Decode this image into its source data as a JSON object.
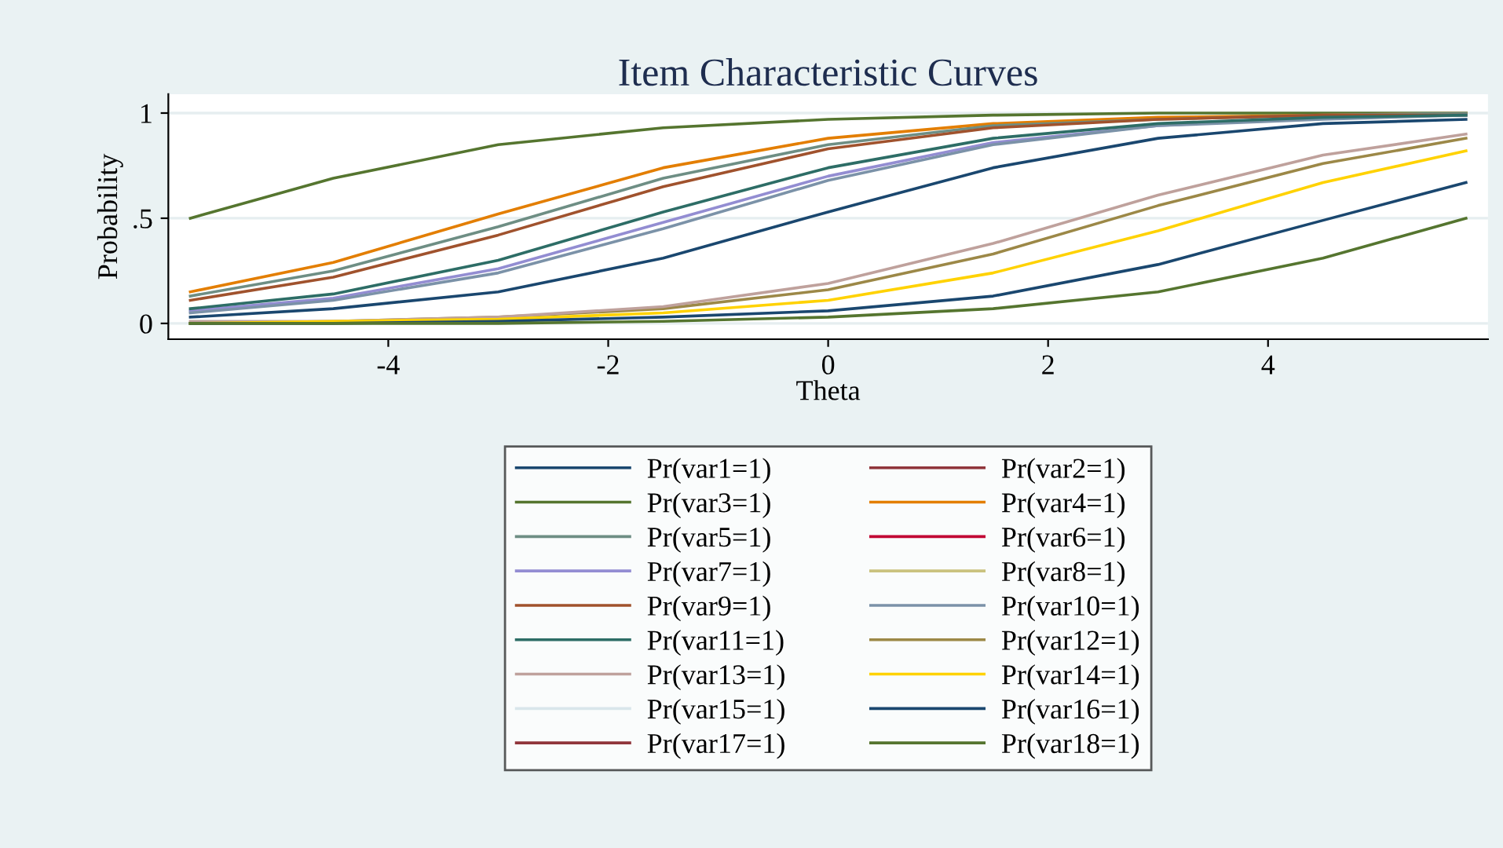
{
  "chart_data": {
    "type": "line",
    "title": "Item Characteristic Curves",
    "xlabel": "Theta",
    "ylabel": "Probability",
    "x": [
      -5.8,
      -4.5,
      -3,
      -1.5,
      0,
      1.5,
      3,
      4.5,
      5.8
    ],
    "xlim": [
      -6,
      6
    ],
    "xticks": [
      {
        "value": -4,
        "label": "-4"
      },
      {
        "value": -2,
        "label": "-2"
      },
      0,
      2,
      4
    ],
    "ylim": [
      -0.075,
      1.09
    ],
    "yticks": [
      0,
      {
        "value": 0.5,
        "label": ".5"
      },
      1
    ],
    "grid": "y",
    "legend": "bottom",
    "marker": "none",
    "line_style": "solid",
    "series": [
      {
        "name": "Pr(var1=1)",
        "color": "#1a476f",
        "values": [
          0.03,
          0.07,
          0.15,
          0.31,
          0.53,
          0.74,
          0.88,
          0.95,
          0.97
        ]
      },
      {
        "name": "Pr(var2=1)",
        "color": "#90353b",
        "values": [
          null,
          null,
          null,
          null,
          null,
          null,
          null,
          null,
          null
        ]
      },
      {
        "name": "Pr(var3=1)",
        "color": "#55752f",
        "values": [
          0.5,
          0.69,
          0.85,
          0.93,
          0.97,
          0.99,
          1,
          1,
          1
        ]
      },
      {
        "name": "Pr(var4=1)",
        "color": "#e37e00",
        "values": [
          0.15,
          0.29,
          0.52,
          0.74,
          0.88,
          0.95,
          0.98,
          0.99,
          1
        ]
      },
      {
        "name": "Pr(var5=1)",
        "color": "#6e8e84",
        "values": [
          0.13,
          0.25,
          0.46,
          0.69,
          0.85,
          0.94,
          0.97,
          0.99,
          1
        ]
      },
      {
        "name": "Pr(var6=1)",
        "color": "#c10534",
        "values": [
          null,
          null,
          null,
          null,
          null,
          null,
          null,
          null,
          null
        ]
      },
      {
        "name": "Pr(var7=1)",
        "color": "#938dd2",
        "values": [
          0.06,
          0.12,
          0.26,
          0.48,
          0.7,
          0.86,
          0.94,
          0.98,
          0.99
        ]
      },
      {
        "name": "Pr(var8=1)",
        "color": "#cac27e",
        "values": [
          null,
          null,
          null,
          null,
          null,
          null,
          null,
          null,
          null
        ]
      },
      {
        "name": "Pr(var9=1)",
        "color": "#a0522d",
        "values": [
          0.11,
          0.22,
          0.42,
          0.65,
          0.83,
          0.93,
          0.97,
          0.99,
          0.99
        ]
      },
      {
        "name": "Pr(var10=1)",
        "color": "#7b92a8",
        "values": [
          0.05,
          0.11,
          0.24,
          0.45,
          0.68,
          0.85,
          0.94,
          0.97,
          0.99
        ]
      },
      {
        "name": "Pr(var11=1)",
        "color": "#2d6d66",
        "values": [
          0.07,
          0.14,
          0.3,
          0.53,
          0.74,
          0.88,
          0.95,
          0.98,
          0.99
        ]
      },
      {
        "name": "Pr(var12=1)",
        "color": "#9c8847",
        "values": [
          0,
          0.01,
          0.03,
          0.07,
          0.16,
          0.33,
          0.56,
          0.76,
          0.88
        ]
      },
      {
        "name": "Pr(var13=1)",
        "color": "#bfa19c",
        "values": [
          0.01,
          0.01,
          0.03,
          0.08,
          0.19,
          0.38,
          0.61,
          0.8,
          0.9
        ]
      },
      {
        "name": "Pr(var14=1)",
        "color": "#ffd200",
        "values": [
          0,
          0.01,
          0.02,
          0.05,
          0.11,
          0.24,
          0.44,
          0.67,
          0.82
        ]
      },
      {
        "name": "Pr(var15=1)",
        "color": "#d9e6eb",
        "values": [
          null,
          null,
          null,
          null,
          null,
          null,
          null,
          null,
          null
        ]
      },
      {
        "name": "Pr(var16=1)",
        "color": "#1a476f",
        "values": [
          0,
          0,
          0.01,
          0.03,
          0.06,
          0.13,
          0.28,
          0.49,
          0.67
        ]
      },
      {
        "name": "Pr(var17=1)",
        "color": "#90353b",
        "values": [
          null,
          null,
          null,
          null,
          null,
          null,
          null,
          null,
          null
        ]
      },
      {
        "name": "Pr(var18=1)",
        "color": "#55752f",
        "values": [
          0,
          0,
          0,
          0.01,
          0.03,
          0.07,
          0.15,
          0.31,
          0.5
        ]
      }
    ]
  }
}
